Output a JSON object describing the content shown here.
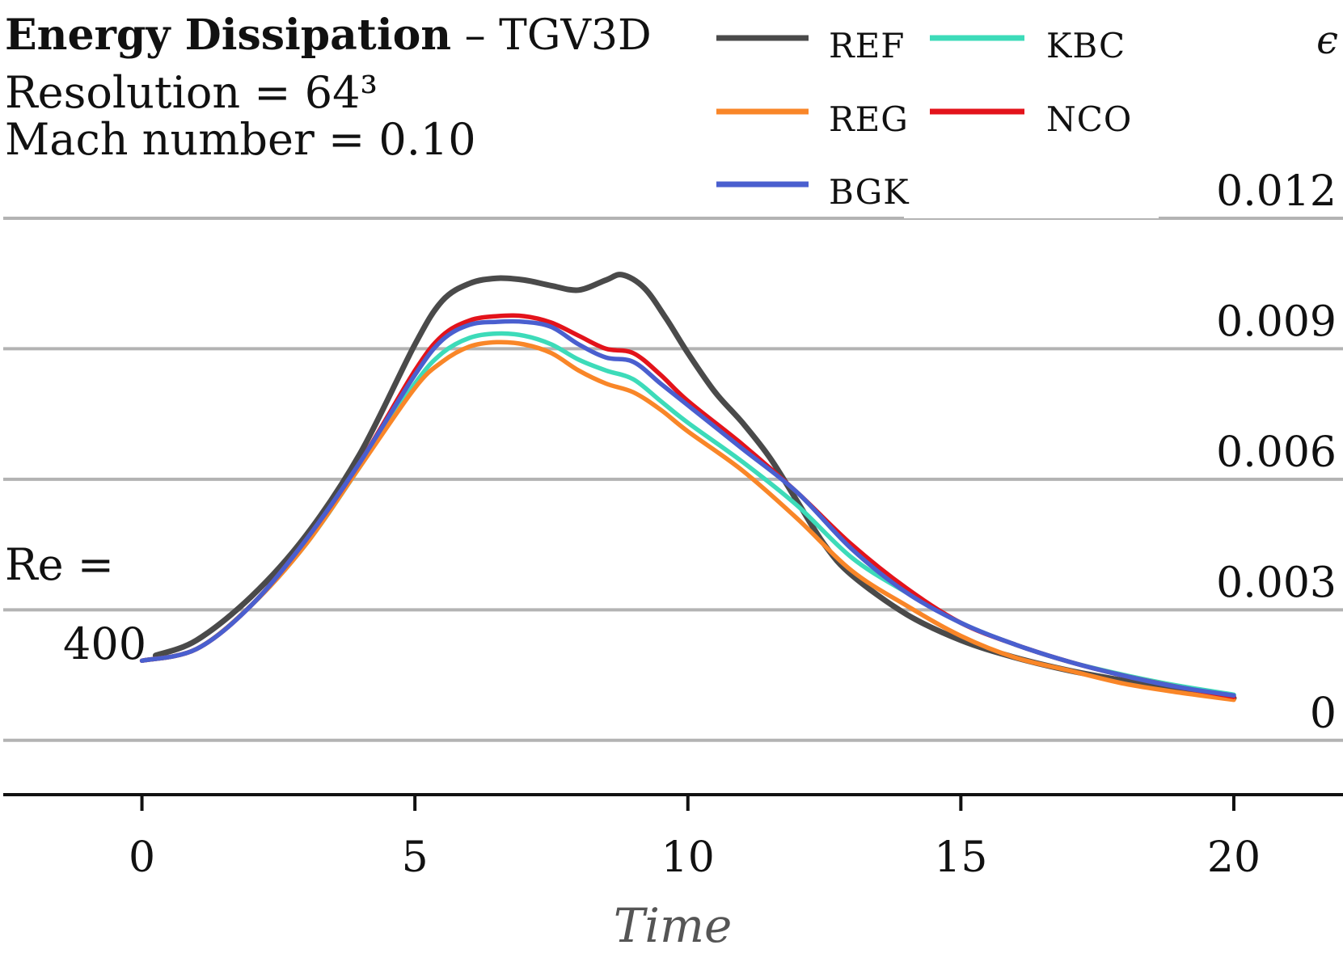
{
  "header": {
    "title_bold": "Energy Dissipation",
    "title_rest": " – TGV3D",
    "resolution_label": "Resolution = 64³",
    "mach_label": "Mach number = 0.10",
    "re_label": "Re =",
    "re_value": "400"
  },
  "chart_data": {
    "type": "line",
    "xlabel": "Time",
    "ylabel": "ϵ",
    "xlim": [
      -2.6,
      22.0
    ],
    "ylim": [
      -0.00045,
      0.0133
    ],
    "x_ticks": [
      0,
      5,
      10,
      15,
      20
    ],
    "x_tick_labels": [
      "0",
      "5",
      "10",
      "15",
      "20"
    ],
    "y_ticks": [
      0,
      0.003,
      0.006,
      0.009,
      0.012
    ],
    "y_tick_labels": [
      "0",
      "0.003",
      "0.006",
      "0.009",
      "0.012"
    ],
    "grid": "horizontal",
    "legend_position": "top-right",
    "series": [
      {
        "name": "REF",
        "color": "#4a4a4a",
        "x": [
          0.25,
          1,
          2,
          3,
          4,
          5,
          5.5,
          6,
          6.5,
          7,
          7.5,
          8,
          8.5,
          8.8,
          9.2,
          9.6,
          10,
          10.5,
          11,
          11.5,
          12,
          12.5,
          13,
          14,
          15,
          16,
          17,
          18,
          19,
          20
        ],
        "y": [
          0.00195,
          0.0023,
          0.0033,
          0.0047,
          0.0066,
          0.0091,
          0.0101,
          0.0105,
          0.01062,
          0.01058,
          0.01045,
          0.01035,
          0.01058,
          0.0107,
          0.0104,
          0.0097,
          0.0089,
          0.008,
          0.0073,
          0.0065,
          0.0055,
          0.0045,
          0.0038,
          0.0029,
          0.0023,
          0.0019,
          0.0016,
          0.00137,
          0.00117,
          0.00097
        ]
      },
      {
        "name": "KBC",
        "color": "#3ddbb9",
        "x": [
          0,
          1,
          2,
          3,
          4,
          5,
          5.5,
          6,
          6.5,
          7,
          7.5,
          8,
          8.5,
          9,
          9.5,
          10,
          11,
          12,
          13,
          14,
          15,
          16,
          17,
          18,
          19,
          20
        ],
        "y": [
          0.00183,
          0.0021,
          0.0031,
          0.0045,
          0.0063,
          0.0082,
          0.0089,
          0.00925,
          0.00935,
          0.0093,
          0.0091,
          0.00875,
          0.0085,
          0.0083,
          0.0078,
          0.0073,
          0.0064,
          0.0054,
          0.0042,
          0.0034,
          0.0027,
          0.0022,
          0.0018,
          0.0015,
          0.00125,
          0.00105
        ]
      },
      {
        "name": "REG",
        "color": "#f98628",
        "x": [
          0,
          1,
          2,
          3,
          4,
          5,
          5.5,
          6,
          6.5,
          7,
          7.5,
          8,
          8.5,
          9,
          9.5,
          10,
          11,
          12,
          13,
          14,
          15,
          16,
          17,
          18,
          19,
          20
        ],
        "y": [
          0.00183,
          0.0021,
          0.0031,
          0.0045,
          0.0063,
          0.0081,
          0.0087,
          0.00905,
          0.00915,
          0.0091,
          0.0089,
          0.0085,
          0.0082,
          0.008,
          0.0076,
          0.0071,
          0.0062,
          0.0051,
          0.0039,
          0.0031,
          0.0024,
          0.0019,
          0.0016,
          0.0013,
          0.0011,
          0.00093
        ]
      },
      {
        "name": "NCO",
        "color": "#e3131b",
        "x": [
          0,
          1,
          2,
          3,
          4,
          5,
          5.5,
          6,
          6.5,
          7,
          7.5,
          8,
          8.5,
          9,
          9.5,
          10,
          11,
          12,
          13,
          14,
          15,
          16,
          17,
          18,
          19,
          20
        ],
        "y": [
          0.00183,
          0.0021,
          0.0031,
          0.0046,
          0.0064,
          0.0085,
          0.0093,
          0.00965,
          0.00975,
          0.00975,
          0.0096,
          0.0093,
          0.009,
          0.0089,
          0.0084,
          0.0078,
          0.0068,
          0.0057,
          0.0045,
          0.0035,
          0.0027,
          0.0022,
          0.0018,
          0.00148,
          0.00122,
          0.001
        ]
      },
      {
        "name": "BGK",
        "color": "#4a5fcf",
        "x": [
          0,
          1,
          2,
          3,
          4,
          5,
          5.5,
          6,
          6.5,
          7,
          7.5,
          8,
          8.5,
          9,
          9.5,
          10,
          11,
          12,
          13,
          14,
          15,
          16,
          17,
          18,
          19,
          20
        ],
        "y": [
          0.00183,
          0.0021,
          0.0031,
          0.0046,
          0.0064,
          0.0084,
          0.0092,
          0.00955,
          0.00962,
          0.00962,
          0.0095,
          0.0091,
          0.0088,
          0.0087,
          0.0082,
          0.0077,
          0.0067,
          0.0057,
          0.0044,
          0.0034,
          0.0027,
          0.0022,
          0.0018,
          0.00148,
          0.00122,
          0.00103
        ]
      }
    ]
  }
}
